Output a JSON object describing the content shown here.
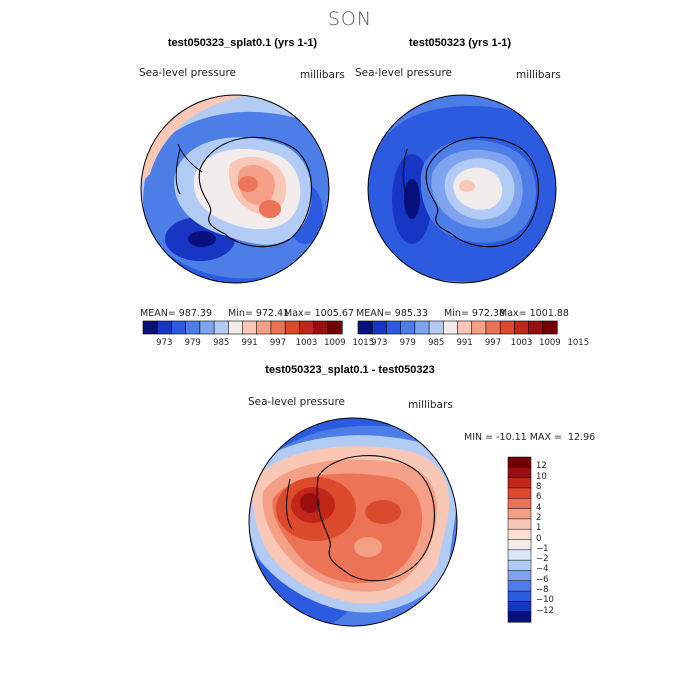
{
  "season": "SON",
  "colors": {
    "palette13": [
      "#08107e",
      "#1836c4",
      "#2c5be0",
      "#4d7ee8",
      "#7ea4ef",
      "#b2cbf4",
      "#f2ecec",
      "#f8c7b6",
      "#f4a086",
      "#ed7356",
      "#dc4a2c",
      "#c0261a",
      "#990e0e",
      "#720000"
    ]
  },
  "chart_data": [
    {
      "type": "heatmap",
      "title": "test050323_splat0.1 (yrs 1-1)",
      "variable_label": "Sea-level pressure",
      "units": "millibars",
      "stats": {
        "mean_label": "MEAN= 987.39",
        "min_label": "Min= 972.41",
        "max_label": "Max= 1005.67",
        "mean": 987.39,
        "min": 972.41,
        "max": 1005.67
      },
      "colorbar_ticks": [
        "973",
        "979",
        "985",
        "991",
        "997",
        "1003",
        "1009",
        "1015"
      ]
    },
    {
      "type": "heatmap",
      "title": "test050323 (yrs 1-1)",
      "variable_label": "Sea-level pressure",
      "units": "millibars",
      "stats": {
        "mean_label": "MEAN= 985.33",
        "min_label": "Min= 972.38",
        "max_label": "Max= 1001.88",
        "mean": 985.33,
        "min": 972.38,
        "max": 1001.88
      },
      "colorbar_ticks": [
        "973",
        "979",
        "985",
        "991",
        "997",
        "1003",
        "1009",
        "1015"
      ]
    },
    {
      "type": "heatmap",
      "title": "test050323_splat0.1 - test050323",
      "variable_label": "Sea-level pressure",
      "units": "millibars",
      "stats": {
        "minmax_label": "MIN = -10.11 MAX =  12.96",
        "min": -10.11,
        "max": 12.96
      },
      "colorbar_ticks": [
        "12",
        "10",
        "8",
        "6",
        "4",
        "2",
        "1",
        "0",
        "−1",
        "−2",
        "−4",
        "−6",
        "−8",
        "−10",
        "−12"
      ]
    }
  ]
}
